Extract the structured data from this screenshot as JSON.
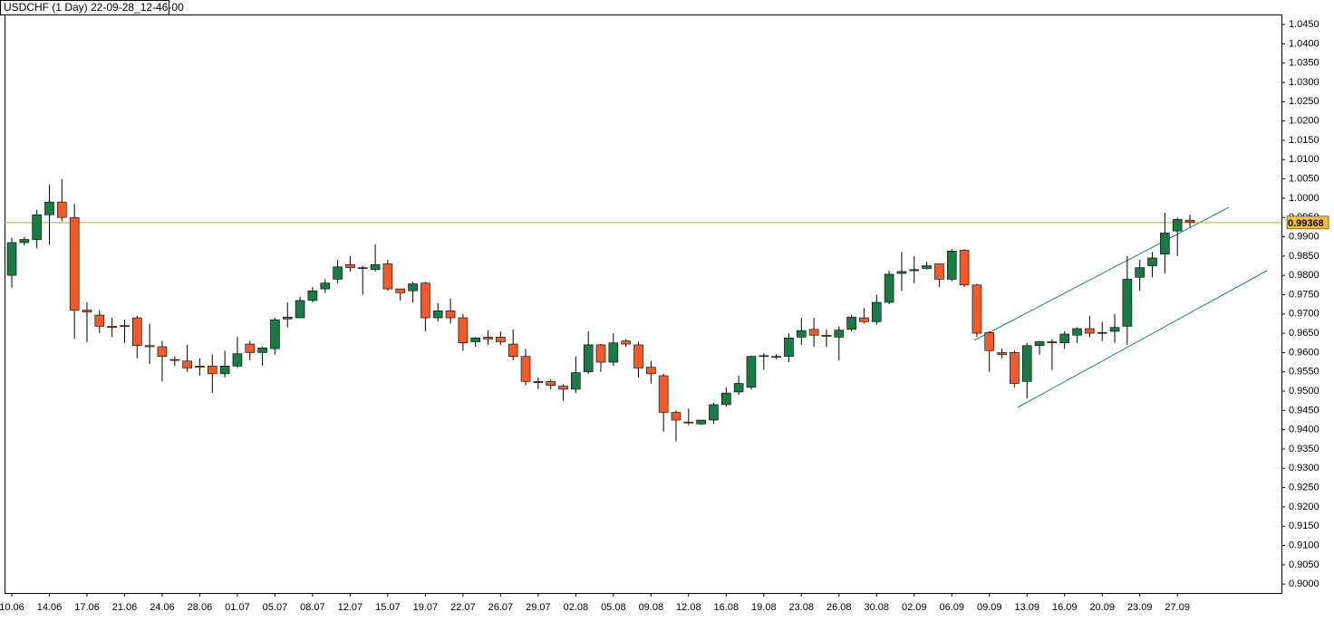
{
  "chart_data": {
    "type": "candlestick",
    "title": "USDCHF (1 Day) 22-09-28_12-46-00",
    "up_color": "#1a7a45",
    "down_color": "#ef5b2a",
    "categories": [
      "10.06",
      null,
      null,
      "14.06",
      null,
      null,
      "17.06",
      null,
      null,
      "21.06",
      null,
      null,
      "24.06",
      null,
      null,
      "28.06",
      null,
      null,
      "01.07",
      null,
      null,
      "05.07",
      null,
      null,
      "08.07",
      null,
      null,
      "12.07",
      null,
      null,
      "15.07",
      null,
      null,
      "19.07",
      null,
      null,
      "22.07",
      null,
      null,
      "26.07",
      null,
      null,
      "29.07",
      null,
      null,
      "02.08",
      null,
      null,
      "05.08",
      null,
      null,
      "09.08",
      null,
      null,
      "12.08",
      null,
      null,
      "16.08",
      null,
      null,
      "19.08",
      null,
      null,
      "23.08",
      null,
      null,
      "26.08",
      null,
      null,
      "30.08",
      null,
      null,
      "02.09",
      null,
      null,
      "06.09",
      null,
      null,
      "09.09",
      null,
      null,
      "13.09",
      null,
      null,
      "16.09",
      null,
      null,
      "20.09",
      null,
      null,
      "23.09",
      null,
      null,
      "27.09",
      null
    ],
    "open": [
      0.98,
      0.9885,
      0.9893,
      0.9957,
      0.999,
      0.995,
      0.971,
      0.9697,
      0.9668,
      0.967,
      0.969,
      0.9618,
      0.9615,
      0.9582,
      0.9578,
      0.9565,
      0.9565,
      0.9545,
      0.9565,
      0.9622,
      0.96,
      0.961,
      0.9687,
      0.969,
      0.9735,
      0.9765,
      0.979,
      0.9828,
      0.9818,
      0.9815,
      0.983,
      0.9765,
      0.976,
      0.978,
      0.969,
      0.9708,
      0.969,
      0.9628,
      0.964,
      0.964,
      0.9622,
      0.959,
      0.9525,
      0.9525,
      0.9513,
      0.9505,
      0.955,
      0.962,
      0.9575,
      0.963,
      0.962,
      0.9562,
      0.954,
      0.9445,
      0.942,
      0.9415,
      0.9425,
      0.9465,
      0.9498,
      0.951,
      0.959,
      0.959,
      0.959,
      0.964,
      0.966,
      0.9645,
      0.964,
      0.966,
      0.969,
      0.968,
      0.973,
      0.9805,
      0.9812,
      0.9818,
      0.983,
      0.979,
      0.9865,
      0.9775,
      0.9652,
      0.96,
      0.96,
      0.9525,
      0.9618,
      0.9628,
      0.9625,
      0.9645,
      0.9662,
      0.965,
      0.9655,
      0.9668,
      0.9795,
      0.9825,
      0.9855,
      0.9915,
      0.9943
    ],
    "high": [
      0.9897,
      0.99,
      0.997,
      1.0035,
      1.005,
      0.9985,
      0.973,
      0.971,
      0.969,
      0.9685,
      0.9695,
      0.9675,
      0.963,
      0.959,
      0.962,
      0.9585,
      0.9595,
      0.9605,
      0.964,
      0.963,
      0.9615,
      0.969,
      0.973,
      0.9745,
      0.977,
      0.979,
      0.984,
      0.985,
      0.9825,
      0.988,
      0.984,
      0.9765,
      0.9783,
      0.9783,
      0.9728,
      0.974,
      0.97,
      0.964,
      0.9658,
      0.9655,
      0.966,
      0.961,
      0.9535,
      0.953,
      0.9518,
      0.959,
      0.9655,
      0.9622,
      0.965,
      0.9635,
      0.9628,
      0.9578,
      0.9545,
      0.945,
      0.9455,
      0.9425,
      0.947,
      0.951,
      0.954,
      0.9592,
      0.9598,
      0.9595,
      0.965,
      0.969,
      0.969,
      0.966,
      0.9668,
      0.9698,
      0.9715,
      0.975,
      0.9812,
      0.986,
      0.985,
      0.9835,
      0.983,
      0.9868,
      0.9868,
      0.9778,
      0.9655,
      0.961,
      0.9605,
      0.9625,
      0.963,
      0.9635,
      0.9655,
      0.9665,
      0.9695,
      0.968,
      0.97,
      0.985,
      0.984,
      0.986,
      0.9962,
      0.995,
      0.9957
    ],
    "low": [
      0.9768,
      0.9878,
      0.987,
      0.988,
      0.994,
      0.9635,
      0.9627,
      0.965,
      0.964,
      0.9625,
      0.9585,
      0.957,
      0.9525,
      0.9565,
      0.955,
      0.954,
      0.9495,
      0.9535,
      0.956,
      0.958,
      0.9565,
      0.9595,
      0.9665,
      0.969,
      0.973,
      0.9755,
      0.978,
      0.981,
      0.975,
      0.981,
      0.976,
      0.9735,
      0.973,
      0.9655,
      0.968,
      0.9675,
      0.9605,
      0.9615,
      0.962,
      0.962,
      0.958,
      0.9515,
      0.9505,
      0.9505,
      0.9475,
      0.9495,
      0.9545,
      0.955,
      0.9565,
      0.9615,
      0.9535,
      0.952,
      0.9395,
      0.937,
      0.9412,
      0.9413,
      0.9415,
      0.946,
      0.949,
      0.9505,
      0.9555,
      0.9583,
      0.9575,
      0.962,
      0.9615,
      0.9615,
      0.958,
      0.9655,
      0.9675,
      0.9672,
      0.9725,
      0.976,
      0.978,
      0.9815,
      0.977,
      0.9785,
      0.977,
      0.964,
      0.955,
      0.9585,
      0.951,
      0.948,
      0.9595,
      0.9555,
      0.961,
      0.9625,
      0.964,
      0.963,
      0.9625,
      0.962,
      0.976,
      0.9795,
      0.9805,
      0.985,
      0.9925
    ],
    "close": [
      0.9885,
      0.9893,
      0.9957,
      0.999,
      0.995,
      0.971,
      0.9705,
      0.9668,
      0.9665,
      0.9668,
      0.9618,
      0.9615,
      0.959,
      0.958,
      0.956,
      0.9562,
      0.9545,
      0.9565,
      0.9597,
      0.96,
      0.9612,
      0.9685,
      0.9692,
      0.9735,
      0.976,
      0.978,
      0.9822,
      0.982,
      0.982,
      0.9828,
      0.9765,
      0.9755,
      0.9778,
      0.969,
      0.9708,
      0.969,
      0.9625,
      0.9638,
      0.9635,
      0.9628,
      0.959,
      0.9525,
      0.9522,
      0.9515,
      0.9505,
      0.9548,
      0.962,
      0.9575,
      0.9625,
      0.9622,
      0.956,
      0.9545,
      0.9445,
      0.9425,
      0.9418,
      0.9425,
      0.9465,
      0.9495,
      0.952,
      0.959,
      0.9592,
      0.9588,
      0.9638,
      0.9657,
      0.9645,
      0.9642,
      0.9658,
      0.9692,
      0.968,
      0.973,
      0.9803,
      0.981,
      0.9815,
      0.9825,
      0.979,
      0.9863,
      0.9775,
      0.965,
      0.9605,
      0.9595,
      0.952,
      0.9618,
      0.9628,
      0.9625,
      0.9648,
      0.9662,
      0.965,
      0.9652,
      0.9665,
      0.979,
      0.982,
      0.9845,
      0.991,
      0.9945,
      0.9937
    ],
    "last_price": 0.99368,
    "last_price_color": "#c8a22a",
    "ylim": [
      0.8977,
      1.0476
    ],
    "yticks": [
      {
        "value": 0.9,
        "label": "0.9000"
      },
      {
        "value": 0.905,
        "label": "0.9050"
      },
      {
        "value": 0.91,
        "label": "0.9100"
      },
      {
        "value": 0.915,
        "label": "0.9150"
      },
      {
        "value": 0.92,
        "label": "0.9200"
      },
      {
        "value": 0.925,
        "label": "0.9250"
      },
      {
        "value": 0.93,
        "label": "0.9300"
      },
      {
        "value": 0.935,
        "label": "0.9350"
      },
      {
        "value": 0.94,
        "label": "0.9400"
      },
      {
        "value": 0.945,
        "label": "0.9450"
      },
      {
        "value": 0.95,
        "label": "0.9500"
      },
      {
        "value": 0.955,
        "label": "0.9550"
      },
      {
        "value": 0.96,
        "label": "0.9600"
      },
      {
        "value": 0.965,
        "label": "0.9650"
      },
      {
        "value": 0.97,
        "label": "0.9700"
      },
      {
        "value": 0.975,
        "label": "0.9750"
      },
      {
        "value": 0.98,
        "label": "0.9800"
      },
      {
        "value": 0.985,
        "label": "0.9850"
      },
      {
        "value": 0.99,
        "label": "0.9900"
      },
      {
        "value": 0.995,
        "label": "0.9950"
      },
      {
        "value": 1.0,
        "label": "1.0000"
      },
      {
        "value": 1.005,
        "label": "1.0050"
      },
      {
        "value": 1.01,
        "label": "1.0100"
      },
      {
        "value": 1.015,
        "label": "1.0150"
      },
      {
        "value": 1.02,
        "label": "1.0200"
      },
      {
        "value": 1.025,
        "label": "1.0250"
      },
      {
        "value": 1.03,
        "label": "1.0300"
      },
      {
        "value": 1.035,
        "label": "1.0350"
      },
      {
        "value": 1.04,
        "label": "1.0400"
      },
      {
        "value": 1.045,
        "label": "1.0450"
      }
    ],
    "grid": false
  }
}
